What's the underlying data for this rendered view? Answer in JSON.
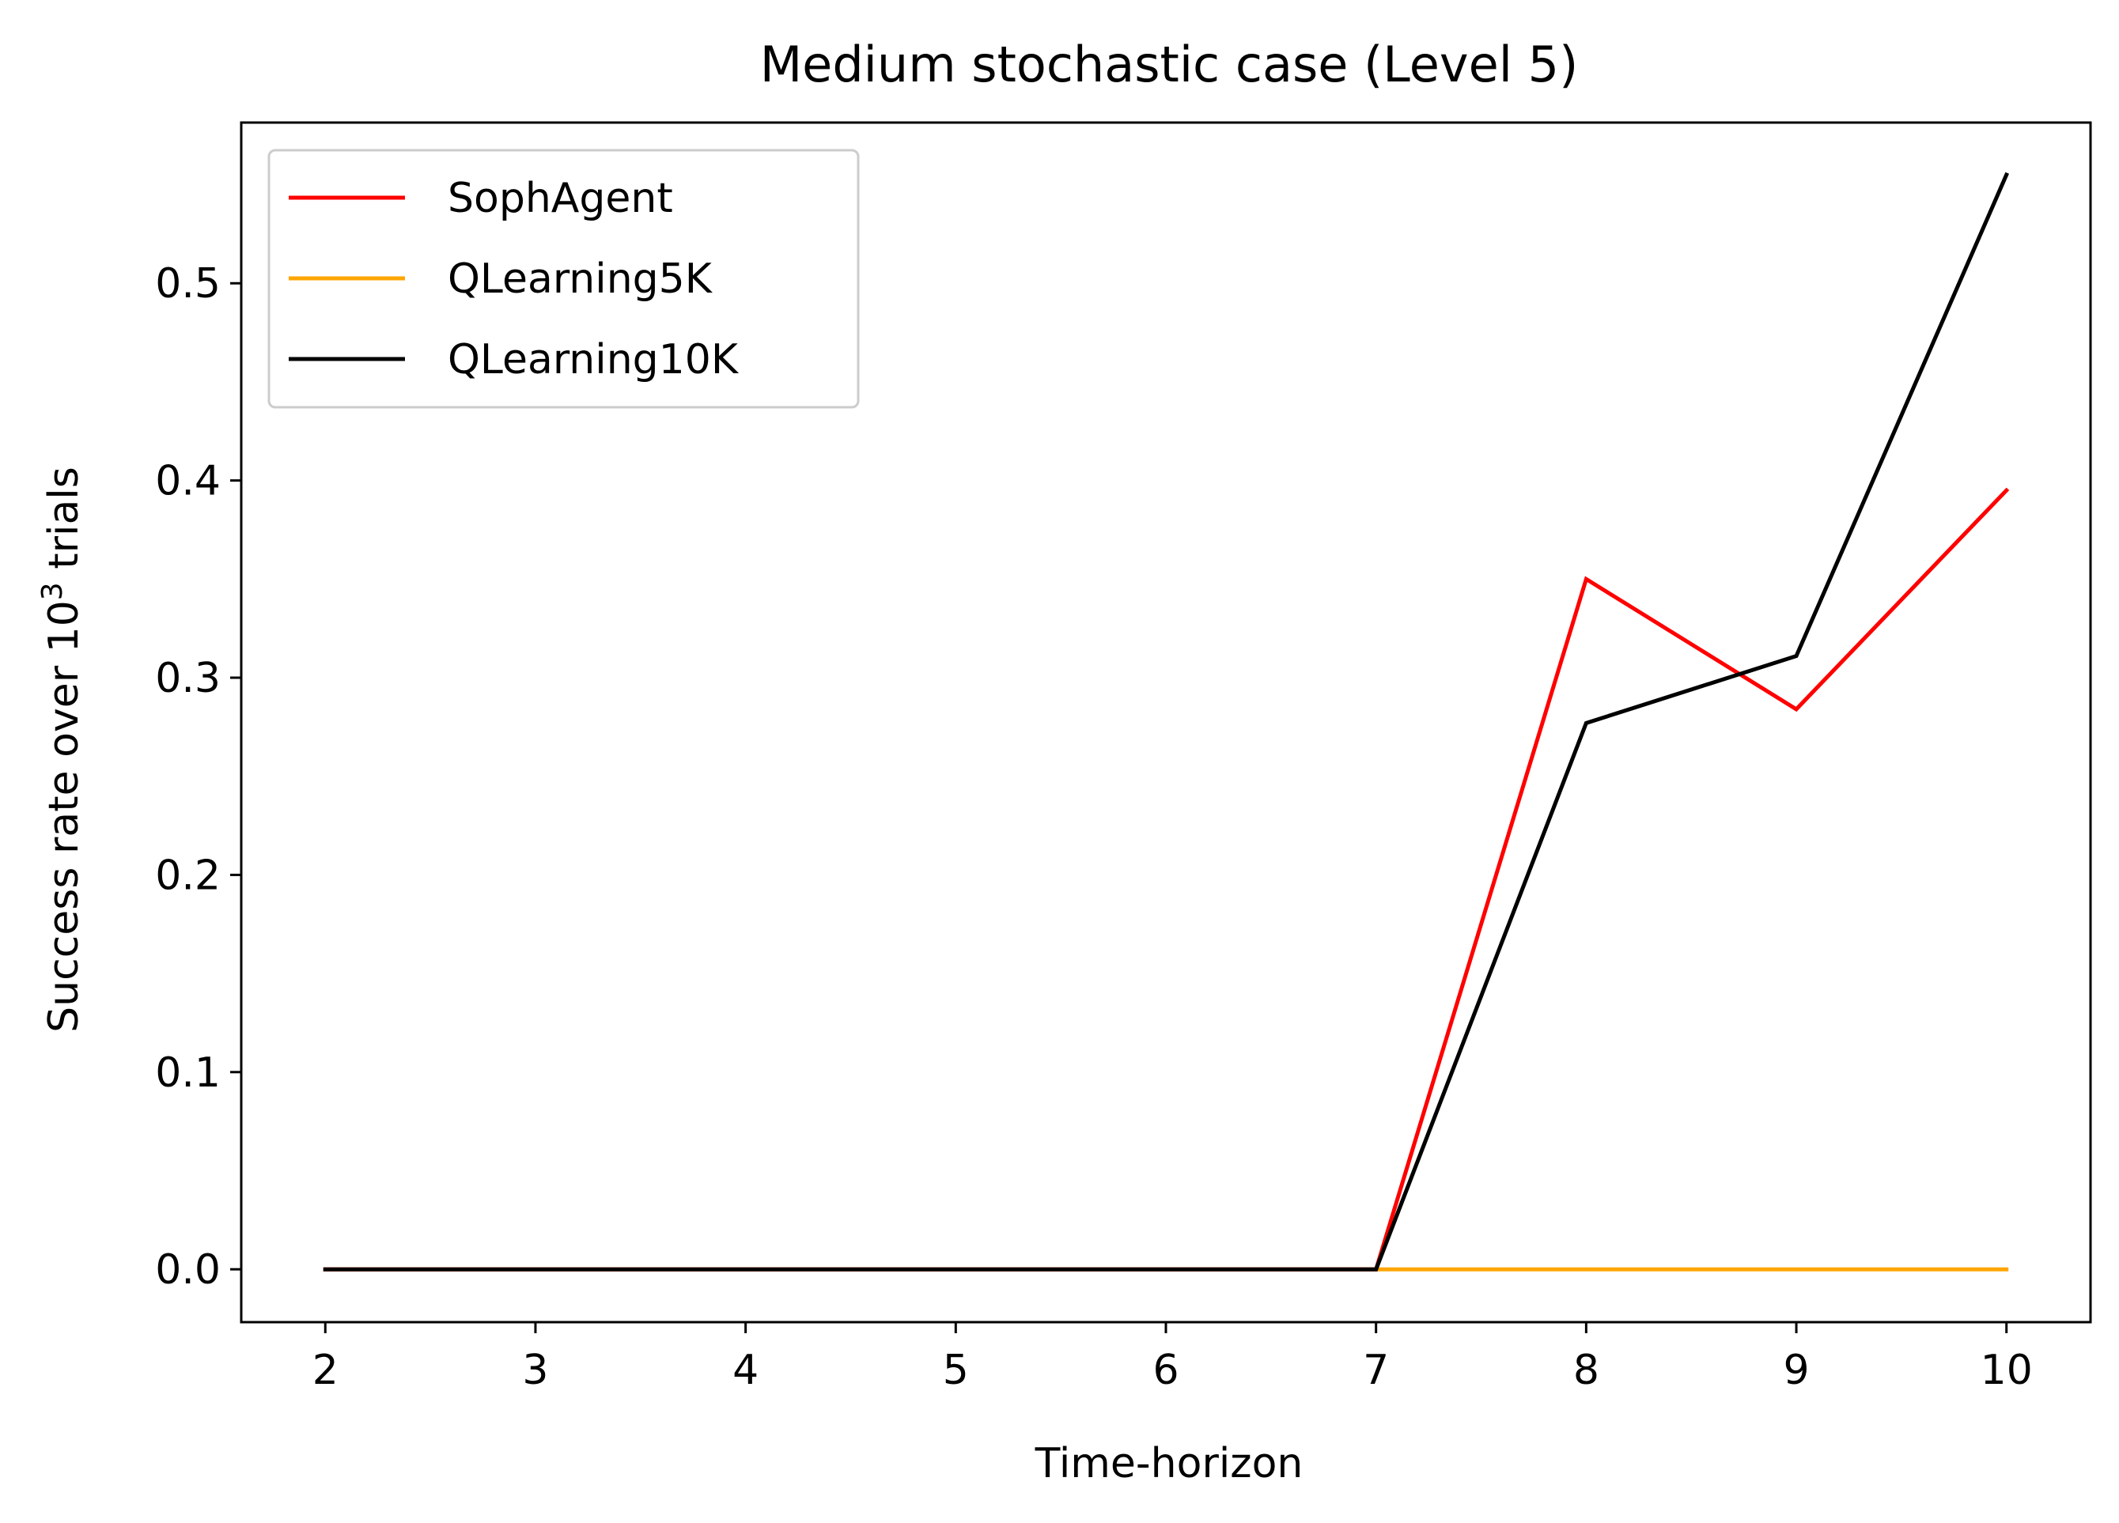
{
  "chart_data": {
    "type": "line",
    "title": "Medium stochastic case (Level 5)",
    "xlabel": "Time-horizon",
    "ylabel": "Success rate over 10",
    "ylabel_sup": "3",
    "ylabel_tail": " trials",
    "x": [
      2,
      3,
      4,
      5,
      6,
      7,
      8,
      9,
      10
    ],
    "xlim": [
      1.6,
      10.4
    ],
    "ylim": [
      -0.0268,
      0.5815
    ],
    "xticks": [
      2,
      3,
      4,
      5,
      6,
      7,
      8,
      9,
      10
    ],
    "yticks": [
      0.0,
      0.1,
      0.2,
      0.3,
      0.4,
      0.5
    ],
    "ytick_labels": [
      "0.0",
      "0.1",
      "0.2",
      "0.3",
      "0.4",
      "0.5"
    ],
    "grid": false,
    "legend_position": "upper-left",
    "series": [
      {
        "name": "SophAgent",
        "color": "#ff0000",
        "values": [
          0,
          0,
          0,
          0,
          0,
          0,
          0.35,
          0.284,
          0.395
        ]
      },
      {
        "name": "QLearning5K",
        "color": "#ffa500",
        "values": [
          0,
          0,
          0,
          0,
          0,
          0,
          0,
          0,
          0
        ]
      },
      {
        "name": "QLearning10K",
        "color": "#000000",
        "values": [
          0,
          0,
          0,
          0,
          0,
          0,
          0.277,
          0.311,
          0.555
        ]
      }
    ]
  }
}
